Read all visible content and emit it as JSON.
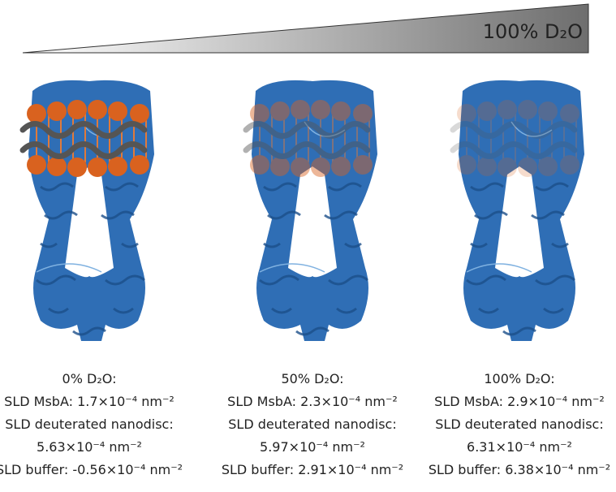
{
  "gradient_label": "100% D₂O",
  "panels": [
    {
      "condition": "0% D₂O:",
      "lines": [
        "SLD MsbA: 1.7×10⁻⁴ nm⁻²",
        "SLD deuterated nanodisc:",
        "5.63×10⁻⁴ nm⁻²",
        "SLD buffer: -0.56×10⁻⁴ nm⁻²"
      ]
    },
    {
      "condition": "50% D₂O:",
      "lines": [
        "SLD MsbA: 2.3×10⁻⁴ nm⁻²",
        "SLD deuterated nanodisc:",
        "5.97×10⁻⁴ nm⁻²",
        "SLD buffer: 2.91×10⁻⁴ nm⁻²"
      ]
    },
    {
      "condition": "100% D₂O:",
      "lines": [
        "SLD MsbA: 2.9×10⁻⁴ nm⁻²",
        "SLD deuterated nanodisc:",
        "6.31×10⁻⁴ nm⁻²",
        "SLD buffer: 6.38×10⁻⁴ nm⁻²"
      ]
    }
  ]
}
